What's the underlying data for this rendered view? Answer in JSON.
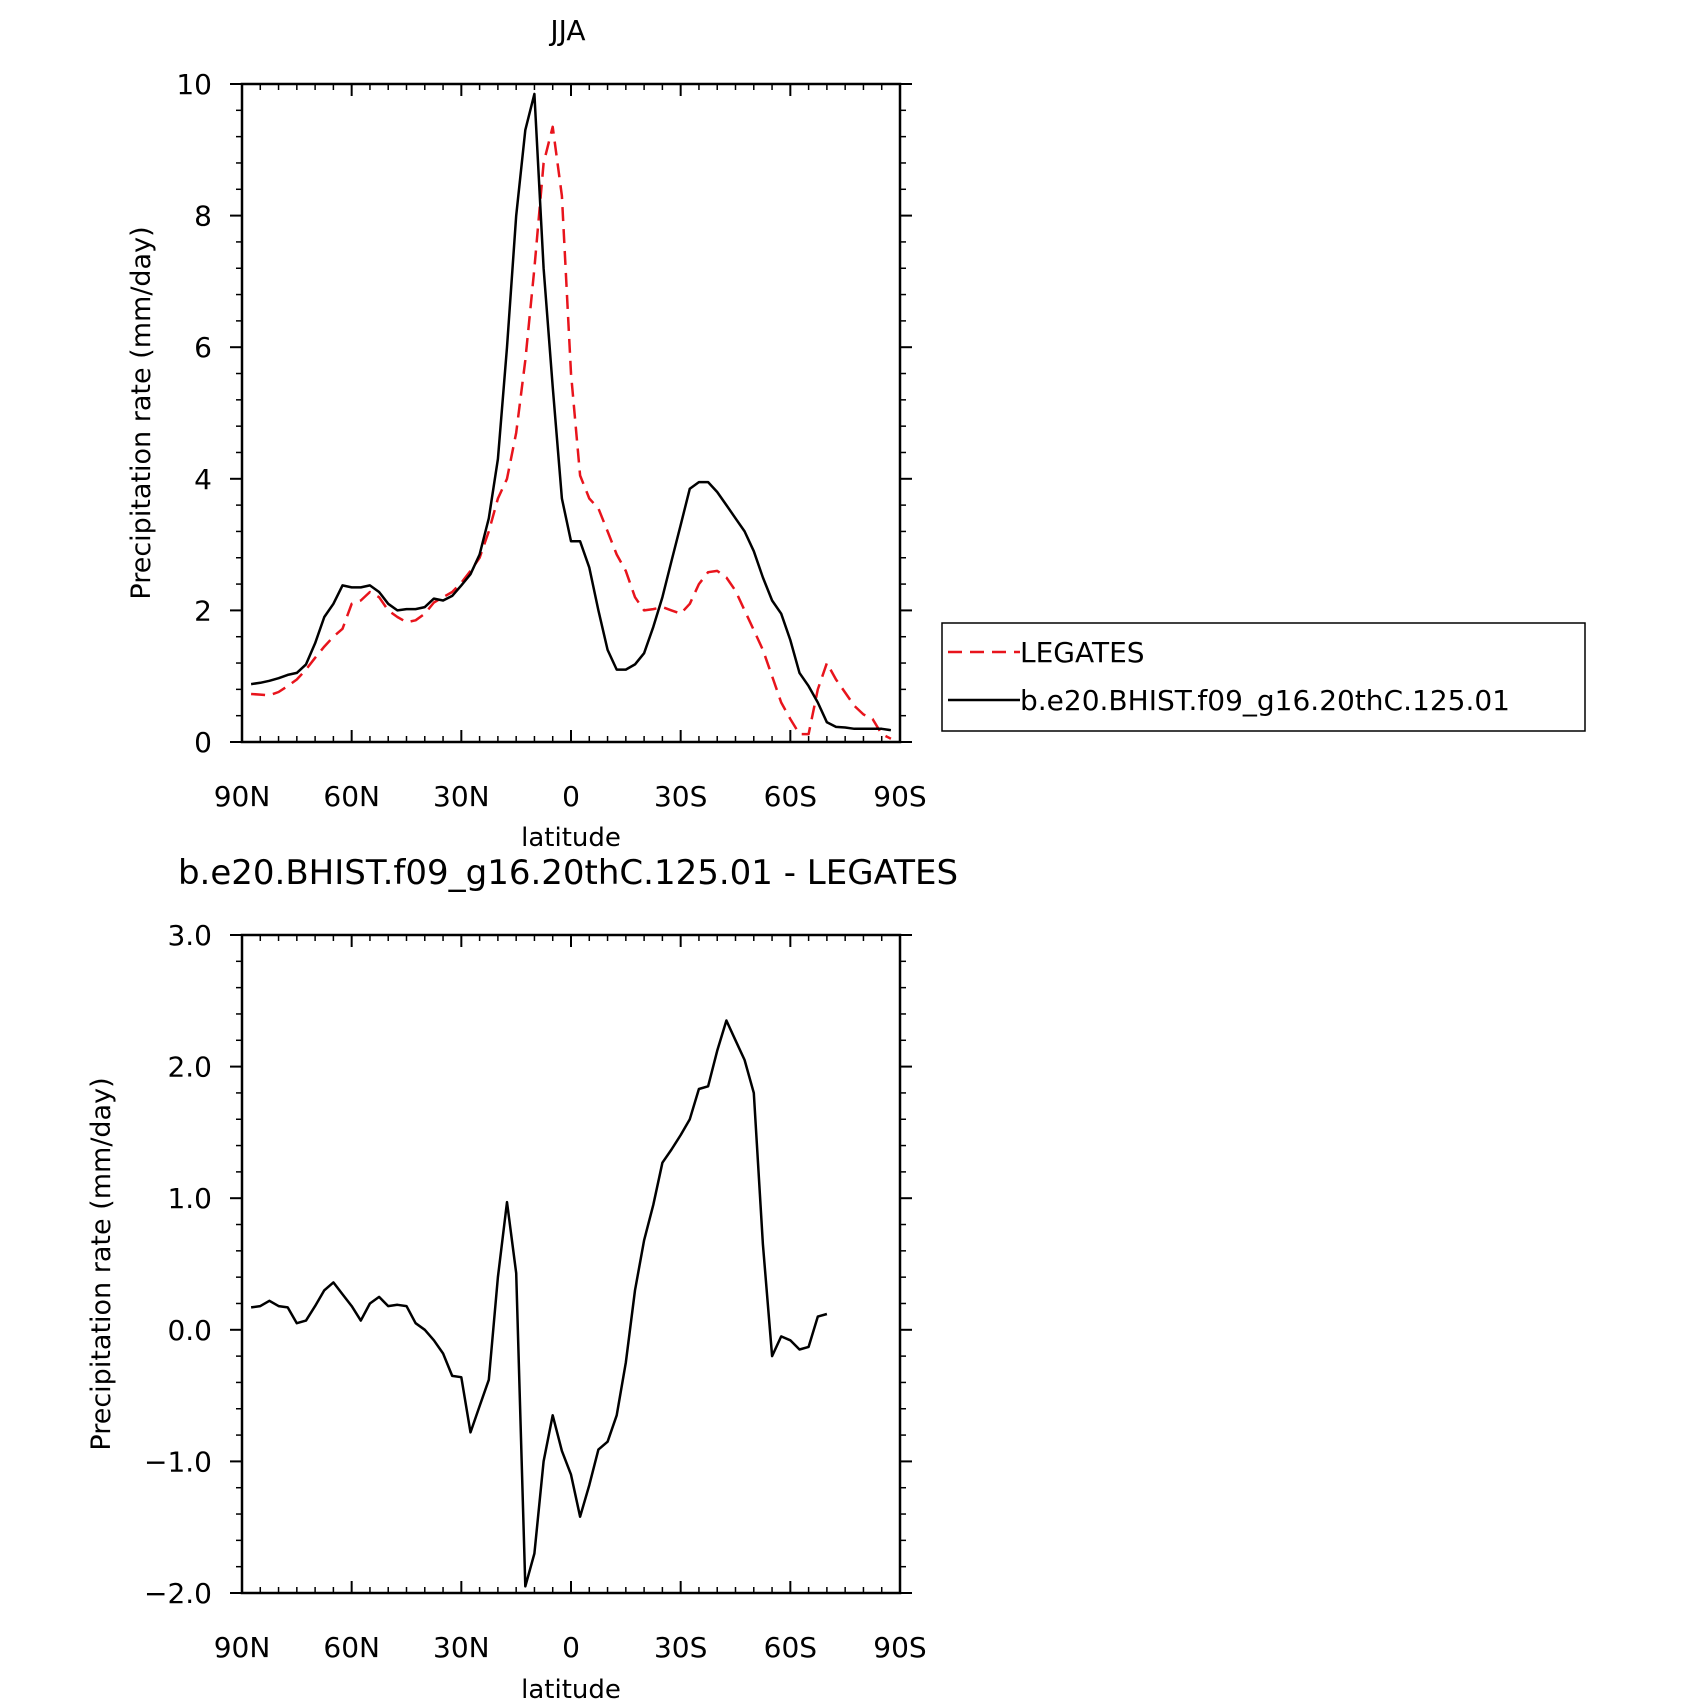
{
  "chart_data": [
    {
      "type": "line",
      "title": "JJA",
      "xlabel": "latitude",
      "ylabel": "Precipitation rate (mm/day)",
      "xlim": [
        -90,
        90
      ],
      "ylim": [
        0,
        10
      ],
      "xticks": [
        {
          "value": -90,
          "label": "90N"
        },
        {
          "value": -60,
          "label": "60N"
        },
        {
          "value": -30,
          "label": "30N"
        },
        {
          "value": 0,
          "label": "0"
        },
        {
          "value": 30,
          "label": "30S"
        },
        {
          "value": 60,
          "label": "60S"
        },
        {
          "value": 90,
          "label": "90S"
        }
      ],
      "yticks": [
        {
          "value": 0,
          "label": "0"
        },
        {
          "value": 2,
          "label": "2"
        },
        {
          "value": 4,
          "label": "4"
        },
        {
          "value": 6,
          "label": "6"
        },
        {
          "value": 8,
          "label": "8"
        },
        {
          "value": 10,
          "label": "10"
        }
      ],
      "legend_position": "right",
      "series": [
        {
          "name": "LEGATES",
          "color": "#e8141c",
          "dash": "dashed",
          "points": [
            [
              -87.5,
              0.73
            ],
            [
              -85,
              0.72
            ],
            [
              -82.5,
              0.71
            ],
            [
              -80,
              0.76
            ],
            [
              -77.5,
              0.85
            ],
            [
              -75,
              0.95
            ],
            [
              -72.5,
              1.1
            ],
            [
              -70,
              1.28
            ],
            [
              -67.5,
              1.45
            ],
            [
              -65,
              1.6
            ],
            [
              -62.5,
              1.72
            ],
            [
              -60,
              2.1
            ],
            [
              -57.5,
              2.15
            ],
            [
              -55,
              2.28
            ],
            [
              -52.5,
              2.2
            ],
            [
              -50,
              2.0
            ],
            [
              -47.5,
              1.9
            ],
            [
              -45,
              1.82
            ],
            [
              -42.5,
              1.85
            ],
            [
              -40,
              1.95
            ],
            [
              -37.5,
              2.12
            ],
            [
              -35,
              2.2
            ],
            [
              -32.5,
              2.28
            ],
            [
              -30,
              2.42
            ],
            [
              -27.5,
              2.6
            ],
            [
              -25,
              2.8
            ],
            [
              -22.5,
              3.2
            ],
            [
              -20,
              3.7
            ],
            [
              -17.5,
              4.0
            ],
            [
              -15,
              4.7
            ],
            [
              -12.5,
              5.8
            ],
            [
              -10,
              7.2
            ],
            [
              -7.5,
              8.8
            ],
            [
              -5,
              9.35
            ],
            [
              -2.5,
              8.3
            ],
            [
              0,
              5.6
            ],
            [
              2.5,
              4.05
            ],
            [
              5,
              3.7
            ],
            [
              7.5,
              3.55
            ],
            [
              10,
              3.2
            ],
            [
              12.5,
              2.85
            ],
            [
              15,
              2.6
            ],
            [
              17.5,
              2.2
            ],
            [
              20,
              2.0
            ],
            [
              22.5,
              2.02
            ],
            [
              25,
              2.05
            ],
            [
              27.5,
              2.0
            ],
            [
              30,
              1.95
            ],
            [
              32.5,
              2.1
            ],
            [
              35,
              2.4
            ],
            [
              37.5,
              2.58
            ],
            [
              40,
              2.6
            ],
            [
              42.5,
              2.5
            ],
            [
              45,
              2.3
            ],
            [
              47.5,
              2.0
            ],
            [
              50,
              1.7
            ],
            [
              52.5,
              1.4
            ],
            [
              55,
              1.0
            ],
            [
              57.5,
              0.6
            ],
            [
              60,
              0.35
            ],
            [
              62.5,
              0.12
            ],
            [
              65,
              0.12
            ],
            [
              67.5,
              0.8
            ],
            [
              70,
              1.2
            ],
            [
              72.5,
              0.95
            ],
            [
              75,
              0.75
            ],
            [
              77.5,
              0.55
            ],
            [
              80,
              0.42
            ],
            [
              82.5,
              0.35
            ],
            [
              85,
              0.12
            ],
            [
              87.5,
              0.05
            ]
          ]
        },
        {
          "name": "b.e20.BHIST.f09_g16.20thC.125.01",
          "color": "#000000",
          "dash": "solid",
          "points": [
            [
              -87.5,
              0.88
            ],
            [
              -85,
              0.9
            ],
            [
              -82.5,
              0.93
            ],
            [
              -80,
              0.97
            ],
            [
              -77.5,
              1.02
            ],
            [
              -75,
              1.05
            ],
            [
              -72.5,
              1.18
            ],
            [
              -70,
              1.5
            ],
            [
              -67.5,
              1.9
            ],
            [
              -65,
              2.1
            ],
            [
              -62.5,
              2.38
            ],
            [
              -60,
              2.35
            ],
            [
              -57.5,
              2.35
            ],
            [
              -55,
              2.38
            ],
            [
              -52.5,
              2.28
            ],
            [
              -50,
              2.1
            ],
            [
              -47.5,
              2.0
            ],
            [
              -45,
              2.02
            ],
            [
              -42.5,
              2.02
            ],
            [
              -40,
              2.05
            ],
            [
              -37.5,
              2.18
            ],
            [
              -35,
              2.15
            ],
            [
              -32.5,
              2.22
            ],
            [
              -30,
              2.38
            ],
            [
              -27.5,
              2.55
            ],
            [
              -25,
              2.85
            ],
            [
              -22.5,
              3.4
            ],
            [
              -20,
              4.3
            ],
            [
              -17.5,
              6.0
            ],
            [
              -15,
              8.0
            ],
            [
              -12.5,
              9.3
            ],
            [
              -10,
              9.85
            ],
            [
              -7.5,
              7.2
            ],
            [
              -5,
              5.4
            ],
            [
              -2.5,
              3.7
            ],
            [
              0,
              3.05
            ],
            [
              2.5,
              3.05
            ],
            [
              5,
              2.65
            ],
            [
              7.5,
              2.0
            ],
            [
              10,
              1.4
            ],
            [
              12.5,
              1.1
            ],
            [
              15,
              1.1
            ],
            [
              17.5,
              1.18
            ],
            [
              20,
              1.35
            ],
            [
              22.5,
              1.75
            ],
            [
              25,
              2.2
            ],
            [
              27.5,
              2.75
            ],
            [
              30,
              3.3
            ],
            [
              32.5,
              3.85
            ],
            [
              35,
              3.95
            ],
            [
              37.5,
              3.95
            ],
            [
              40,
              3.8
            ],
            [
              42.5,
              3.6
            ],
            [
              45,
              3.4
            ],
            [
              47.5,
              3.2
            ],
            [
              50,
              2.9
            ],
            [
              52.5,
              2.5
            ],
            [
              55,
              2.15
            ],
            [
              57.5,
              1.95
            ],
            [
              60,
              1.55
            ],
            [
              62.5,
              1.05
            ],
            [
              65,
              0.85
            ],
            [
              67.5,
              0.6
            ],
            [
              70,
              0.3
            ],
            [
              72.5,
              0.23
            ],
            [
              75,
              0.22
            ],
            [
              77.5,
              0.2
            ],
            [
              80,
              0.2
            ],
            [
              82.5,
              0.2
            ],
            [
              85,
              0.2
            ],
            [
              87.5,
              0.18
            ]
          ]
        }
      ]
    },
    {
      "type": "line",
      "title": "b.e20.BHIST.f09_g16.20thC.125.01 - LEGATES",
      "xlabel": "latitude",
      "ylabel": "Precipitation rate (mm/day)",
      "xlim": [
        -90,
        90
      ],
      "ylim": [
        -2.0,
        3.0
      ],
      "xticks": [
        {
          "value": -90,
          "label": "90N"
        },
        {
          "value": -60,
          "label": "60N"
        },
        {
          "value": -30,
          "label": "30N"
        },
        {
          "value": 0,
          "label": "0"
        },
        {
          "value": 30,
          "label": "30S"
        },
        {
          "value": 60,
          "label": "60S"
        },
        {
          "value": 90,
          "label": "90S"
        }
      ],
      "yticks": [
        {
          "value": -2.0,
          "label": "-2.0"
        },
        {
          "value": -1.0,
          "label": "-1.0"
        },
        {
          "value": 0.0,
          "label": "0.0"
        },
        {
          "value": 1.0,
          "label": "1.0"
        },
        {
          "value": 2.0,
          "label": "2.0"
        },
        {
          "value": 3.0,
          "label": "3.0"
        }
      ],
      "series": [
        {
          "color": "#000000",
          "dash": "solid",
          "points": [
            [
              -87.5,
              0.17
            ],
            [
              -85,
              0.18
            ],
            [
              -82.5,
              0.22
            ],
            [
              -80,
              0.18
            ],
            [
              -77.5,
              0.17
            ],
            [
              -75,
              0.05
            ],
            [
              -72.5,
              0.07
            ],
            [
              -70,
              0.18
            ],
            [
              -67.5,
              0.3
            ],
            [
              -65,
              0.36
            ],
            [
              -62.5,
              0.27
            ],
            [
              -60,
              0.18
            ],
            [
              -57.5,
              0.07
            ],
            [
              -55,
              0.2
            ],
            [
              -52.5,
              0.25
            ],
            [
              -50,
              0.18
            ],
            [
              -47.5,
              0.19
            ],
            [
              -45,
              0.18
            ],
            [
              -42.5,
              0.05
            ],
            [
              -40,
              0.0
            ],
            [
              -37.5,
              -0.08
            ],
            [
              -35,
              -0.18
            ],
            [
              -32.5,
              -0.35
            ],
            [
              -30,
              -0.36
            ],
            [
              -27.5,
              -0.78
            ],
            [
              -25,
              -0.58
            ],
            [
              -22.5,
              -0.38
            ],
            [
              -20,
              0.4
            ],
            [
              -17.5,
              0.97
            ],
            [
              -15,
              0.43
            ],
            [
              -12.5,
              -1.95
            ],
            [
              -10,
              -1.7
            ],
            [
              -7.5,
              -1.0
            ],
            [
              -5,
              -0.65
            ],
            [
              -2.5,
              -0.92
            ],
            [
              0,
              -1.1
            ],
            [
              2.5,
              -1.42
            ],
            [
              5,
              -1.18
            ],
            [
              7.5,
              -0.91
            ],
            [
              10,
              -0.85
            ],
            [
              12.5,
              -0.65
            ],
            [
              15,
              -0.25
            ],
            [
              17.5,
              0.3
            ],
            [
              20,
              0.68
            ],
            [
              22.5,
              0.95
            ],
            [
              25,
              1.27
            ],
            [
              27.5,
              1.37
            ],
            [
              30,
              1.48
            ],
            [
              32.5,
              1.6
            ],
            [
              35,
              1.83
            ],
            [
              37.5,
              1.85
            ],
            [
              40,
              2.12
            ],
            [
              42.5,
              2.35
            ],
            [
              45,
              2.2
            ],
            [
              47.5,
              2.05
            ],
            [
              50,
              1.8
            ],
            [
              52.5,
              0.65
            ],
            [
              55,
              -0.2
            ],
            [
              57.5,
              -0.05
            ],
            [
              60,
              -0.08
            ],
            [
              62.5,
              -0.15
            ],
            [
              65,
              -0.13
            ],
            [
              67.5,
              0.1
            ],
            [
              70,
              0.12
            ]
          ]
        }
      ]
    }
  ]
}
